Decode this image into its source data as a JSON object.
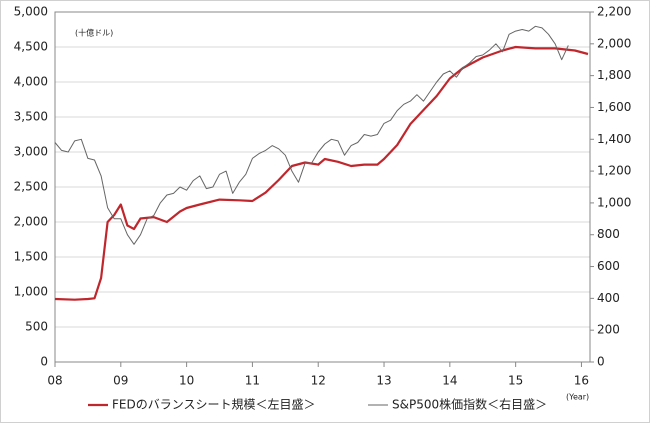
{
  "chart_data": {
    "type": "line",
    "annotation": "(十億ドル)",
    "x_unit": "(Year)",
    "xlim": [
      2008,
      2016.13
    ],
    "xticks": [
      {
        "value": 2008,
        "label": "08"
      },
      {
        "value": 2009,
        "label": "09"
      },
      {
        "value": 2010,
        "label": "10"
      },
      {
        "value": 2011,
        "label": "11"
      },
      {
        "value": 2012,
        "label": "12"
      },
      {
        "value": 2013,
        "label": "13"
      },
      {
        "value": 2014,
        "label": "14"
      },
      {
        "value": 2015,
        "label": "15"
      },
      {
        "value": 2016,
        "label": "16"
      }
    ],
    "ylim": [
      0,
      5000
    ],
    "yticks": [
      0,
      500,
      {
        "value": 1000,
        "label": "1,000"
      },
      {
        "value": 1500,
        "label": "1,500"
      },
      {
        "value": 2000,
        "label": "2,000"
      },
      {
        "value": 2500,
        "label": "2,500"
      },
      {
        "value": 3000,
        "label": "3,000"
      },
      {
        "value": 3500,
        "label": "3,500"
      },
      {
        "value": 4000,
        "label": "4,000"
      },
      {
        "value": 4500,
        "label": "4,500"
      },
      {
        "value": 5000,
        "label": "5,000"
      }
    ],
    "y2lim": [
      0,
      2200
    ],
    "y2ticks": [
      0,
      200,
      400,
      600,
      800,
      {
        "value": 1000,
        "label": "1,000"
      },
      {
        "value": 1200,
        "label": "1,200"
      },
      {
        "value": 1400,
        "label": "1,400"
      },
      {
        "value": 1600,
        "label": "1,600"
      },
      {
        "value": 1800,
        "label": "1,800"
      },
      {
        "value": 2000,
        "label": "2,000"
      },
      {
        "value": 2200,
        "label": "2,200"
      }
    ],
    "grid": true,
    "series": [
      {
        "name": "FEDのバランスシート規模＜左目盛＞",
        "color": "#c0272d",
        "width": 2.2,
        "x": [
          2008.0,
          2008.3,
          2008.5,
          2008.6,
          2008.7,
          2008.8,
          2008.9,
          2009.0,
          2009.1,
          2009.2,
          2009.3,
          2009.5,
          2009.7,
          2009.9,
          2010.0,
          2010.2,
          2010.5,
          2010.8,
          2011.0,
          2011.2,
          2011.4,
          2011.6,
          2011.8,
          2012.0,
          2012.1,
          2012.3,
          2012.5,
          2012.7,
          2012.9,
          2013.0,
          2013.2,
          2013.4,
          2013.6,
          2013.8,
          2014.0,
          2014.2,
          2014.5,
          2014.8,
          2015.0,
          2015.3,
          2015.6,
          2015.9,
          2016.1
        ],
        "values": [
          900,
          890,
          900,
          910,
          1200,
          2000,
          2100,
          2250,
          1950,
          1900,
          2050,
          2070,
          2000,
          2150,
          2200,
          2250,
          2320,
          2310,
          2300,
          2420,
          2600,
          2800,
          2850,
          2820,
          2900,
          2860,
          2800,
          2820,
          2820,
          2900,
          3100,
          3400,
          3600,
          3800,
          4050,
          4200,
          4350,
          4450,
          4500,
          4480,
          4480,
          4450,
          4400
        ]
      },
      {
        "name": "S&P500株価指数＜右目盛＞",
        "color": "#666666",
        "width": 1,
        "axis": "y2",
        "x": [
          2008.0,
          2008.1,
          2008.2,
          2008.3,
          2008.4,
          2008.5,
          2008.6,
          2008.7,
          2008.8,
          2008.9,
          2009.0,
          2009.1,
          2009.2,
          2009.3,
          2009.4,
          2009.5,
          2009.6,
          2009.7,
          2009.8,
          2009.9,
          2010.0,
          2010.1,
          2010.2,
          2010.3,
          2010.4,
          2010.5,
          2010.6,
          2010.7,
          2010.8,
          2010.9,
          2011.0,
          2011.1,
          2011.2,
          2011.3,
          2011.4,
          2011.5,
          2011.6,
          2011.7,
          2011.8,
          2011.9,
          2012.0,
          2012.1,
          2012.2,
          2012.3,
          2012.4,
          2012.5,
          2012.6,
          2012.7,
          2012.8,
          2012.9,
          2013.0,
          2013.1,
          2013.2,
          2013.3,
          2013.4,
          2013.5,
          2013.6,
          2013.7,
          2013.8,
          2013.9,
          2014.0,
          2014.1,
          2014.2,
          2014.3,
          2014.4,
          2014.5,
          2014.6,
          2014.7,
          2014.8,
          2014.9,
          2015.0,
          2015.1,
          2015.2,
          2015.3,
          2015.4,
          2015.5,
          2015.6,
          2015.7,
          2015.8
        ],
        "values": [
          1380,
          1330,
          1320,
          1390,
          1400,
          1280,
          1270,
          1170,
          970,
          900,
          900,
          800,
          740,
          800,
          900,
          920,
          1000,
          1050,
          1060,
          1100,
          1080,
          1140,
          1170,
          1090,
          1100,
          1180,
          1200,
          1060,
          1130,
          1180,
          1280,
          1310,
          1330,
          1360,
          1340,
          1300,
          1200,
          1130,
          1250,
          1250,
          1320,
          1370,
          1400,
          1390,
          1300,
          1360,
          1380,
          1430,
          1420,
          1430,
          1500,
          1520,
          1580,
          1620,
          1640,
          1680,
          1640,
          1700,
          1760,
          1810,
          1830,
          1790,
          1850,
          1880,
          1920,
          1930,
          1960,
          2000,
          1950,
          2060,
          2080,
          2090,
          2080,
          2110,
          2100,
          2060,
          2000,
          1900,
          1990
        ]
      }
    ]
  }
}
